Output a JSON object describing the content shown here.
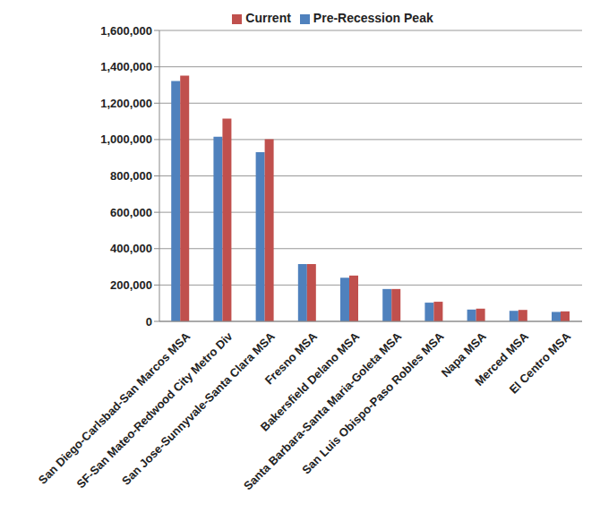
{
  "chart_data": {
    "type": "bar",
    "categories": [
      "San Diego-Carlsbad-San Marcos MSA",
      "SF-San Mateo-Redwood City Metro Div",
      "San Jose-Sunnyvale-Santa Clara MSA",
      "Fresno MSA",
      "Bakersfield Delano MSA",
      "Santa Barbara-Santa Maria-Goleta MSA",
      "San Luis Obispo-Paso Robles MSA",
      "Napa MSA",
      "Merced MSA",
      "El Centro MSA"
    ],
    "series": [
      {
        "name": "Pre-Recession Peak",
        "color": "#4f81bd",
        "values": [
          1322000,
          1015000,
          930000,
          315000,
          240000,
          178000,
          103000,
          65000,
          58000,
          52000
        ]
      },
      {
        "name": "Current",
        "color": "#c0504d",
        "values": [
          1352000,
          1115000,
          1002000,
          315000,
          252000,
          178000,
          108000,
          70000,
          63000,
          55000
        ]
      }
    ],
    "ylim": [
      0,
      1600000
    ],
    "yticks": [
      0,
      {
        "value": 200000,
        "label": "200,000"
      },
      {
        "value": 400000,
        "label": "400,000"
      },
      {
        "value": 600000,
        "label": "600,000"
      },
      {
        "value": 800000,
        "label": "800,000"
      },
      {
        "value": 1000000,
        "label": "1,000,000"
      },
      {
        "value": 1200000,
        "label": "1,200,000"
      },
      {
        "value": 1400000,
        "label": "1,400,000"
      },
      {
        "value": 1600000,
        "label": "1,600,000"
      }
    ],
    "grid": true,
    "legend": "top"
  }
}
